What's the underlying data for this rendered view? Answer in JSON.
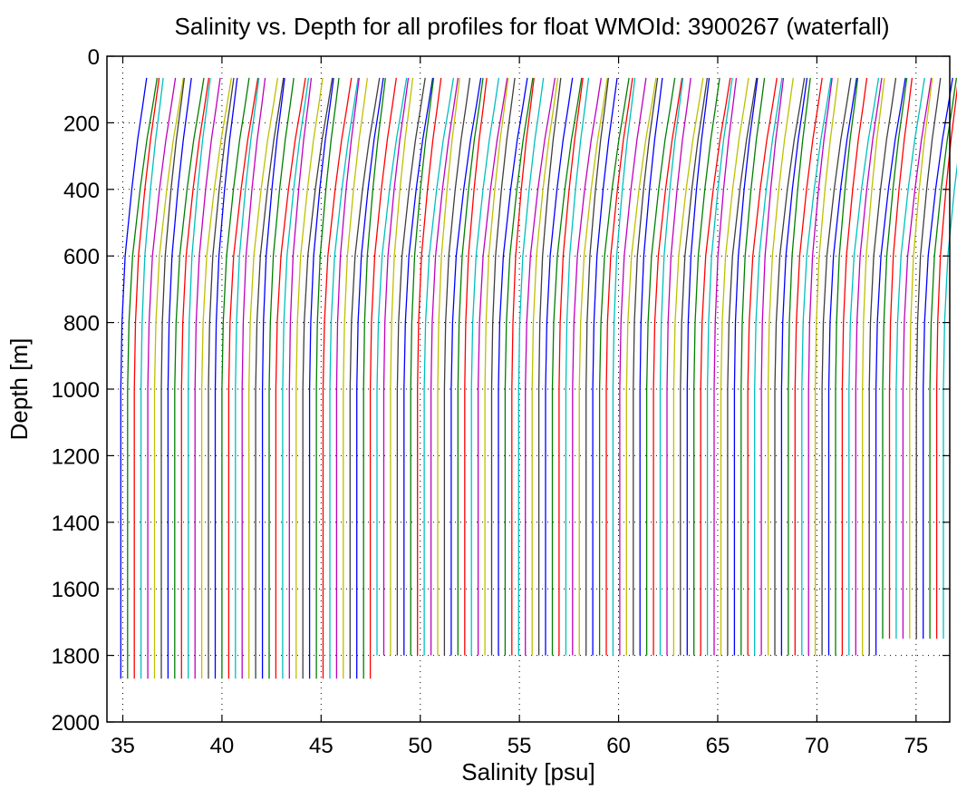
{
  "chart_data": {
    "type": "line",
    "title": "Salinity vs. Depth for all profiles for float WMOId: 3900267 (waterfall)",
    "xlabel": "Salinity [psu]",
    "ylabel": "Depth [m]",
    "xlim": [
      34.2,
      76.7
    ],
    "ylim": [
      0,
      2000
    ],
    "y_reversed": true,
    "grid": true,
    "x_ticks": [
      35,
      40,
      45,
      50,
      55,
      60,
      65,
      70,
      75
    ],
    "y_ticks": [
      0,
      200,
      400,
      600,
      800,
      1000,
      1200,
      1400,
      1600,
      1800,
      2000
    ],
    "waterfall": {
      "profile_count": 123,
      "first_offset_psu": 34.9,
      "offset_step_psu": 0.34,
      "depth_top_m": 65,
      "depth_bottom_m": [
        1870,
        1800,
        1750
      ],
      "shape_depths_m": [
        65,
        150,
        250,
        400,
        600,
        800,
        1000,
        1200,
        1400,
        1600,
        1800,
        1870
      ],
      "shape_rel_salinity": [
        1.3,
        1.1,
        0.85,
        0.55,
        0.22,
        0.06,
        0.0,
        0.0,
        0.0,
        0.0,
        0.0,
        0.0
      ]
    },
    "colors": [
      "#0000ff",
      "#007f00",
      "#ff0000",
      "#00bfbf",
      "#bf00bf",
      "#bfbf00",
      "#3f3f3f"
    ]
  }
}
